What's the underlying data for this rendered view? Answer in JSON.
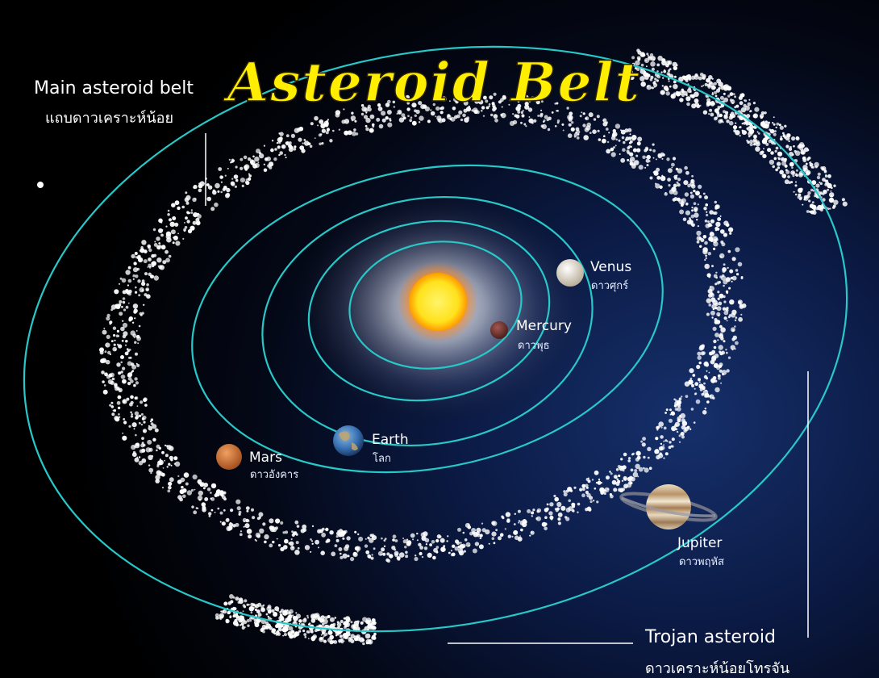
{
  "title": "Asteroid Belt",
  "labels": {
    "main_belt": {
      "en": "Main asteroid belt",
      "th": "แถบดาวเคราะห์น้อย"
    },
    "trojan": {
      "en": "Trojan asteroid",
      "th": "ดาวเคราะห์น้อยโทรจัน"
    }
  },
  "planets": [
    {
      "key": "mercury",
      "en": "Mercury",
      "th": "ดาวพุธ",
      "color": "#7a3a35"
    },
    {
      "key": "venus",
      "en": "Venus",
      "th": "ดาวศุกร์",
      "color": "#e6ded0"
    },
    {
      "key": "earth",
      "en": "Earth",
      "th": "โลก",
      "color": "#3a74b8"
    },
    {
      "key": "mars",
      "en": "Mars",
      "th": "ดาวอังคาร",
      "color": "#d2793f"
    },
    {
      "key": "jupiter",
      "en": "Jupiter",
      "th": "ดาวพฤหัส",
      "color": "#c9b79a"
    }
  ],
  "colors": {
    "orbit": "#28c8c8",
    "sun": "#ffe21c",
    "title": "#ffee00",
    "asteroids": "#ffffff"
  }
}
